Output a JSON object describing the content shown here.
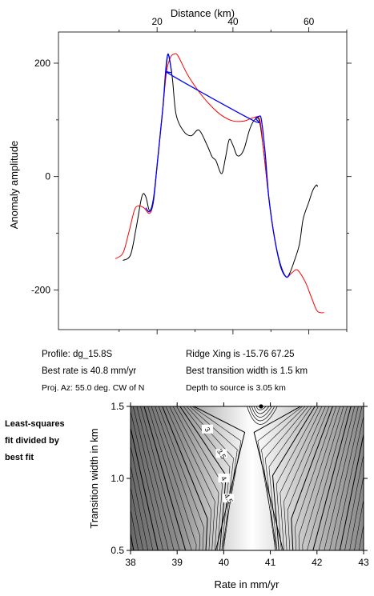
{
  "chart_data": [
    {
      "type": "line",
      "xlabel": "Distance (km)",
      "ylabel": "Anomaly amplitude",
      "xlim": [
        -6,
        70
      ],
      "ylim": [
        -270,
        255
      ],
      "xticks": [
        20,
        40,
        60
      ],
      "yticks": [
        200,
        0,
        -200
      ],
      "series": [
        {
          "color": "#000000",
          "points": [
            [
              11,
              -148
            ],
            [
              13,
              -138
            ],
            [
              14.5,
              -90
            ],
            [
              16,
              -35
            ],
            [
              17,
              -35
            ],
            [
              18,
              -60
            ],
            [
              19,
              -40
            ],
            [
              20,
              20
            ],
            [
              21.5,
              120
            ],
            [
              22.5,
              198
            ],
            [
              23,
              215
            ],
            [
              24,
              175
            ],
            [
              25,
              110
            ],
            [
              27,
              80
            ],
            [
              29,
              72
            ],
            [
              31,
              82
            ],
            [
              33,
              58
            ],
            [
              34.5,
              35
            ],
            [
              35.5,
              28
            ],
            [
              37,
              5
            ],
            [
              38,
              32
            ],
            [
              39,
              65
            ],
            [
              40,
              55
            ],
            [
              41,
              38
            ],
            [
              42,
              38
            ],
            [
              43,
              50
            ],
            [
              44.5,
              85
            ],
            [
              46,
              102
            ],
            [
              47,
              97
            ],
            [
              48,
              50
            ],
            [
              49.5,
              -40
            ],
            [
              51,
              -110
            ],
            [
              52.5,
              -158
            ],
            [
              54,
              -177
            ],
            [
              55,
              -170
            ],
            [
              56,
              -152
            ],
            [
              57.5,
              -120
            ],
            [
              58.5,
              -75
            ],
            [
              60,
              -45
            ],
            [
              61,
              -25
            ],
            [
              62,
              -15
            ],
            [
              62.3,
              -18
            ]
          ]
        },
        {
          "color": "#ff0000",
          "points": [
            [
              9,
              -145
            ],
            [
              11,
              -135
            ],
            [
              12.5,
              -100
            ],
            [
              14,
              -60
            ],
            [
              15,
              -52
            ],
            [
              16.5,
              -55
            ],
            [
              18,
              -65
            ],
            [
              19,
              -45
            ],
            [
              20,
              20
            ],
            [
              21.5,
              120
            ],
            [
              22.5,
              185
            ],
            [
              23.5,
              210
            ],
            [
              24.5,
              216
            ],
            [
              25.5,
              213
            ],
            [
              28,
              180
            ],
            [
              31,
              150
            ],
            [
              34,
              126
            ],
            [
              37,
              108
            ],
            [
              40,
              98
            ],
            [
              43,
              98
            ],
            [
              45,
              103
            ],
            [
              47,
              101
            ],
            [
              48,
              50
            ],
            [
              49.5,
              -40
            ],
            [
              51,
              -110
            ],
            [
              52.5,
              -155
            ],
            [
              54,
              -177
            ],
            [
              55.5,
              -170
            ],
            [
              57,
              -165
            ],
            [
              59,
              -185
            ],
            [
              60.5,
              -210
            ],
            [
              62,
              -235
            ],
            [
              63,
              -240
            ],
            [
              64,
              -240
            ]
          ]
        },
        {
          "color": "#0000ff",
          "points": [
            [
              17,
              -55
            ],
            [
              18,
              -62
            ],
            [
              19,
              -45
            ],
            [
              20,
              20
            ],
            [
              21.5,
              120
            ],
            [
              22.3,
              190
            ],
            [
              22.8,
              215
            ],
            [
              23.2,
              210
            ],
            [
              23.8,
              185
            ],
            [
              24,
              178
            ],
            [
              45,
              100
            ],
            [
              46,
              103
            ],
            [
              46.8,
              106
            ],
            [
              47.5,
              100
            ],
            [
              48.5,
              40
            ],
            [
              49.5,
              -40
            ],
            [
              51,
              -110
            ],
            [
              52.5,
              -155
            ],
            [
              54,
              -177
            ],
            [
              55,
              -172
            ]
          ]
        }
      ]
    },
    {
      "type": "contour",
      "xlabel": "Rate in mm/yr",
      "ylabel": "Transition width in km",
      "xlim": [
        38,
        43
      ],
      "ylim": [
        0.5,
        1.5
      ],
      "xticks": [
        38,
        39,
        40,
        41,
        42,
        43
      ],
      "yticks": [
        0.5,
        1.0,
        1.5
      ],
      "contour_labels": [
        "3",
        "3.5",
        "4",
        "4.5"
      ],
      "best_fit": {
        "x": 40.8,
        "y": 1.5
      }
    }
  ],
  "info": {
    "profile": "Profile: dg_15.8S",
    "ridge": "Ridge Xing is -15.76 67.25",
    "rate": "Best rate is 40.8 mm/yr",
    "width": "Best transition width is 1.5 km",
    "az": "Proj. Az: 55.0 deg. CW of N",
    "depth": "Depth to source is   3.05 km"
  },
  "side_note": [
    "Least-squares",
    "fit divided by",
    "best fit"
  ]
}
